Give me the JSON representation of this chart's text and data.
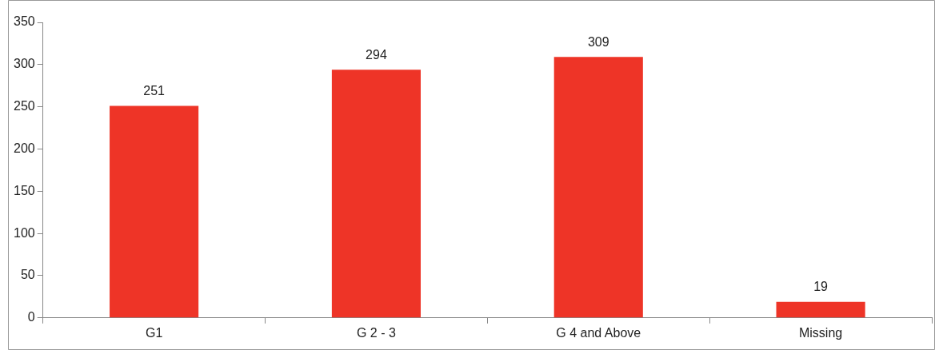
{
  "chart_data": {
    "type": "bar",
    "categories": [
      "G1",
      "G 2 - 3",
      "G 4 and Above",
      "Missing"
    ],
    "values": [
      251,
      294,
      309,
      19
    ],
    "color": "#ee3427",
    "ylim": [
      0,
      350
    ],
    "yticks": [
      0,
      50,
      100,
      150,
      200,
      250,
      300,
      350
    ],
    "grid": false,
    "data_labels": true
  }
}
